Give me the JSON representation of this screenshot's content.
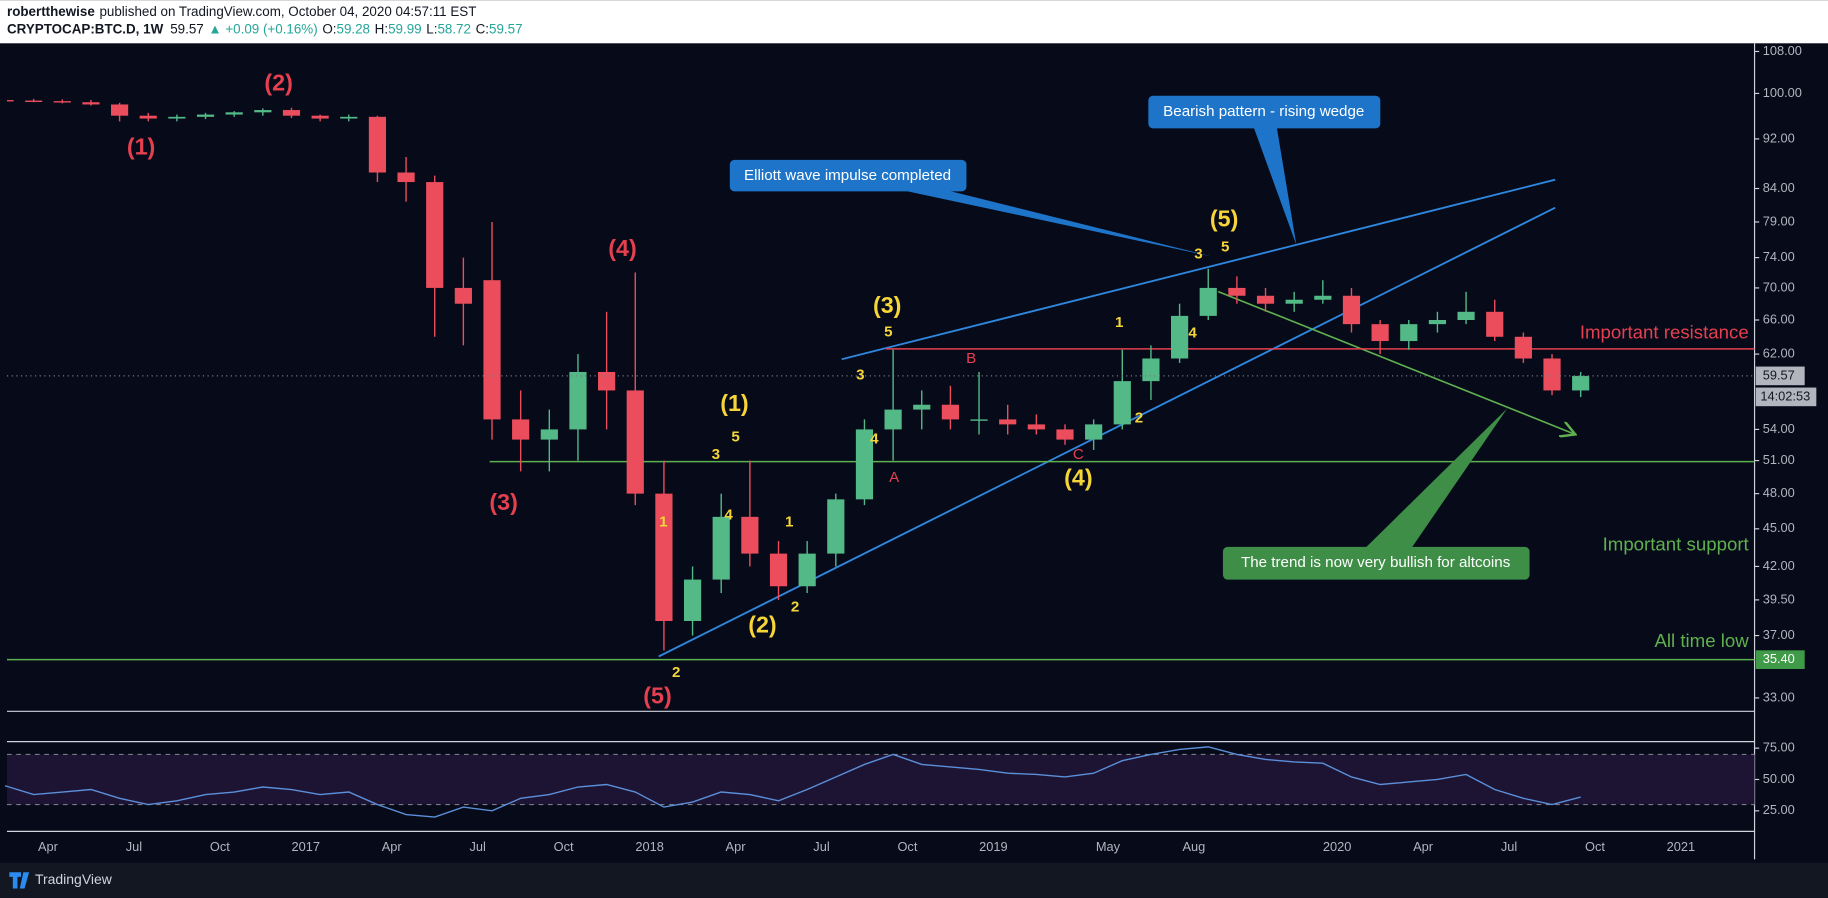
{
  "header": {
    "author": "robertthewise",
    "published": "published on TradingView.com, October 04, 2020 04:57:11 EST",
    "symbol": "CRYPTOCAP:BTC.D, 1W",
    "last": "59.57",
    "change": "▲ +0.09 (+0.16%)",
    "ohlc": [
      {
        "label": "O:",
        "value": "59.28"
      },
      {
        "label": "H:",
        "value": "59.99"
      },
      {
        "label": "L:",
        "value": "58.72"
      },
      {
        "label": "C:",
        "value": "59.57"
      }
    ]
  },
  "footer": {
    "brand": "TradingView"
  },
  "chart_data": {
    "type": "candlestick",
    "log_scale": true,
    "up_color": "#53b987",
    "down_color": "#eb4d5c",
    "x": [
      "2016-02",
      "2016-03",
      "2016-04",
      "2016-05",
      "2016-06",
      "2016-07",
      "2016-08",
      "2016-09",
      "2016-10",
      "2016-11",
      "2016-12",
      "2017-01",
      "2017-02",
      "2017-03",
      "2017-04",
      "2017-05",
      "2017-06",
      "2017-07",
      "2017-08",
      "2017-09",
      "2017-10",
      "2017-11",
      "2017-12",
      "2018-01",
      "2018-02",
      "2018-03",
      "2018-04",
      "2018-05",
      "2018-06",
      "2018-07",
      "2018-08",
      "2018-09",
      "2018-10",
      "2018-11",
      "2018-12",
      "2019-01",
      "2019-02",
      "2019-03",
      "2019-04",
      "2019-05",
      "2019-06",
      "2019-07",
      "2019-08",
      "2019-09",
      "2019-10",
      "2019-11",
      "2019-12",
      "2020-01",
      "2020-02",
      "2020-03",
      "2020-04",
      "2020-05",
      "2020-06",
      "2020-07",
      "2020-08",
      "2020-09"
    ],
    "open": [
      98.8,
      98.7,
      98.6,
      98.4,
      98.0,
      96.0,
      95.5,
      95.8,
      96.2,
      96.6,
      97.0,
      96.0,
      95.5,
      95.8,
      86.5,
      85.0,
      70.0,
      71.0,
      55.0,
      53.0,
      54.0,
      60.0,
      58.0,
      48.0,
      38.0,
      41.0,
      46.0,
      43.0,
      40.5,
      43.0,
      47.5,
      54.0,
      56.0,
      56.5,
      55.0,
      55.0,
      54.5,
      54.0,
      53.0,
      54.5,
      59.0,
      61.5,
      66.5,
      70.0,
      69.0,
      68.0,
      68.5,
      69.0,
      65.5,
      63.5,
      65.5,
      66.0,
      67.0,
      64.0,
      61.5,
      58.0
    ],
    "high": [
      99.0,
      99.0,
      98.9,
      98.8,
      98.3,
      96.5,
      96.2,
      96.5,
      96.8,
      97.3,
      97.4,
      96.2,
      96.2,
      96.0,
      89.0,
      86.0,
      74.0,
      79.0,
      58.0,
      56.0,
      62.0,
      67.0,
      72.0,
      51.0,
      42.0,
      48.0,
      51.0,
      44.0,
      44.0,
      48.0,
      55.0,
      62.5,
      58.0,
      58.5,
      60.0,
      56.5,
      55.5,
      54.5,
      55.0,
      62.5,
      63.0,
      68.0,
      72.5,
      71.5,
      70.0,
      69.5,
      71.0,
      70.0,
      66.0,
      66.0,
      67.0,
      69.5,
      68.5,
      64.5,
      62.0,
      60.0
    ],
    "low": [
      98.5,
      98.4,
      98.2,
      97.8,
      95.0,
      95.0,
      95.0,
      95.4,
      95.8,
      96.0,
      95.6,
      95.0,
      95.0,
      85.0,
      82.0,
      64.0,
      63.0,
      53.0,
      50.0,
      50.0,
      51.0,
      54.0,
      47.0,
      36.0,
      37.0,
      40.0,
      42.0,
      39.5,
      40.0,
      42.0,
      47.0,
      51.0,
      54.0,
      54.0,
      53.5,
      53.5,
      53.5,
      52.5,
      52.0,
      54.0,
      57.0,
      61.0,
      66.0,
      68.0,
      67.0,
      67.0,
      68.0,
      64.5,
      62.0,
      62.5,
      64.5,
      65.5,
      63.5,
      61.0,
      57.5,
      57.3
    ],
    "close": [
      98.7,
      98.6,
      98.4,
      98.0,
      96.0,
      95.5,
      95.8,
      96.2,
      96.6,
      97.0,
      96.0,
      95.5,
      95.8,
      86.5,
      85.0,
      70.0,
      68.0,
      55.0,
      53.0,
      54.0,
      60.0,
      58.0,
      48.0,
      38.0,
      41.0,
      46.0,
      43.0,
      40.5,
      43.0,
      47.5,
      54.0,
      56.0,
      56.5,
      55.0,
      55.0,
      54.5,
      54.0,
      53.0,
      54.5,
      59.0,
      61.5,
      66.5,
      70.0,
      69.0,
      68.0,
      68.5,
      69.0,
      65.5,
      63.5,
      65.5,
      66.0,
      67.0,
      64.0,
      61.5,
      58.0,
      59.57
    ],
    "ylim": [
      32.2,
      109.4
    ],
    "yticks": [
      {
        "value": 108,
        "label": "108.00"
      },
      {
        "value": 100,
        "label": "100.00"
      },
      {
        "value": 92,
        "label": "92.00"
      },
      {
        "value": 84,
        "label": "84.00"
      },
      {
        "value": 79,
        "label": "79.00"
      },
      {
        "value": 74,
        "label": "74.00"
      },
      {
        "value": 70,
        "label": "70.00"
      },
      {
        "value": 66,
        "label": "66.00"
      },
      {
        "value": 62,
        "label": "62.00"
      },
      {
        "value": 54,
        "label": "54.00"
      },
      {
        "value": 51,
        "label": "51.00"
      },
      {
        "value": 48,
        "label": "48.00"
      },
      {
        "value": 45,
        "label": "45.00"
      },
      {
        "value": 42,
        "label": "42.00"
      },
      {
        "value": 39.5,
        "label": "39.50"
      },
      {
        "value": 37,
        "label": "37.00"
      },
      {
        "value": 33,
        "label": "33.00"
      }
    ],
    "xlim": [
      "2016-02",
      "2021-03"
    ],
    "xticks": [
      {
        "value": "2016-04",
        "label": "Apr"
      },
      {
        "value": "2016-07",
        "label": "Jul"
      },
      {
        "value": "2016-10",
        "label": "Oct"
      },
      {
        "value": "2017-01",
        "label": "2017"
      },
      {
        "value": "2017-04",
        "label": "Apr"
      },
      {
        "value": "2017-07",
        "label": "Jul"
      },
      {
        "value": "2017-10",
        "label": "Oct"
      },
      {
        "value": "2018-01",
        "label": "2018"
      },
      {
        "value": "2018-04",
        "label": "Apr"
      },
      {
        "value": "2018-07",
        "label": "Jul"
      },
      {
        "value": "2018-10",
        "label": "Oct"
      },
      {
        "value": "2019-01",
        "label": "2019"
      },
      {
        "value": "2019-05",
        "label": "May"
      },
      {
        "value": "2019-08",
        "label": "Aug"
      },
      {
        "value": "2020-01",
        "label": "2020"
      },
      {
        "value": "2020-04",
        "label": "Apr"
      },
      {
        "value": "2020-07",
        "label": "Jul"
      },
      {
        "value": "2020-10",
        "label": "Oct"
      },
      {
        "value": "2021-01",
        "label": "2021"
      }
    ],
    "last_price": {
      "value": 59.57,
      "label": "59.57"
    },
    "countdown": "14:02:53",
    "levels": [
      {
        "label": "Important resistance",
        "value": 62.6,
        "color": "#e5404f"
      },
      {
        "label": "Important support",
        "value": 50.9,
        "color": "#5fb04f"
      },
      {
        "label": "All time low",
        "value": 35.4,
        "value_label": "35.40",
        "color": "#5fb04f"
      }
    ],
    "annotations": {
      "primary_waves": [
        "(1)",
        "(2)",
        "(3)",
        "(4)",
        "(5)"
      ],
      "intermediate_waves": [
        "(1)",
        "(2)",
        "(3)",
        "(4)",
        "(5)"
      ],
      "minor_waves": [
        "1",
        "2",
        "3",
        "4",
        "5",
        "1",
        "2",
        "3",
        "4",
        "5",
        "1",
        "2",
        "3",
        "4",
        "5"
      ],
      "correction": [
        "A",
        "B",
        "C"
      ],
      "callouts": [
        "Elliott wave impulse completed",
        "Bearish pattern - rising wedge",
        "The trend is now very bullish for altcoins"
      ]
    },
    "rsi": {
      "color": "#5b8fd9",
      "values": [
        45,
        38,
        40,
        42,
        35,
        30,
        33,
        38,
        40,
        44,
        42,
        38,
        40,
        30,
        22,
        20,
        28,
        25,
        35,
        38,
        44,
        46,
        40,
        28,
        32,
        40,
        38,
        33,
        42,
        52,
        62,
        70,
        62,
        60,
        58,
        55,
        54,
        52,
        55,
        65,
        70,
        74,
        76,
        70,
        66,
        64,
        63,
        52,
        46,
        48,
        50,
        54,
        42,
        35,
        30,
        36
      ],
      "ylim": [
        8.6,
        80.2
      ],
      "band": [
        30,
        70
      ],
      "yticks": [
        {
          "value": 75,
          "label": "75.00"
        },
        {
          "value": 50,
          "label": "50.00"
        },
        {
          "value": 25,
          "label": "25.00"
        }
      ]
    }
  }
}
